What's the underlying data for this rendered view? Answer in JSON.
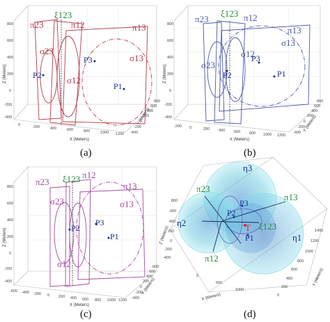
{
  "captions": [
    "(a)",
    "(b)",
    "(c)",
    "(d)"
  ],
  "axis_labels": {
    "x": "X (Meters)",
    "y": "Y (Meters)",
    "z": "Z (Meters)"
  },
  "panel_a": {
    "labels": {
      "pi23": "π23",
      "xi123": "ξ123",
      "pi12": "π12",
      "pi13": "π13",
      "sigma23": "σ23",
      "sigma12": "σ12",
      "sigma13": "σ13",
      "p1": "P1",
      "p2": "P2",
      "p3": "P3"
    },
    "z_ticks": [
      "800",
      "600",
      "400",
      "200",
      "0",
      "-200",
      "-400"
    ],
    "x_ticks": [
      "0",
      "200",
      "400",
      "600",
      "800",
      "1000",
      "1200"
    ],
    "y_ticks": [
      "-400",
      "-200",
      "0",
      "200",
      "400",
      "600",
      "800"
    ],
    "colors": {
      "primary": "#b53a4a",
      "secondary": "#c9707c",
      "axis_line": "#3a3a3a"
    }
  },
  "panel_b": {
    "labels": {
      "pi23": "π23",
      "xi123": "ξ123",
      "pi12": "π12",
      "pi13": "π13",
      "sigma23": "σ23",
      "sigma12": "σ12",
      "sigma13": "σ13",
      "p1": "P1",
      "p2": "P2",
      "p3": "P3"
    },
    "z_ticks": [
      "800",
      "600",
      "400",
      "200",
      "0",
      "-200",
      "-400"
    ],
    "x_ticks": [
      "-200",
      "0",
      "200",
      "400",
      "600",
      "800",
      "1000",
      "1200"
    ],
    "y_ticks": [
      "-400",
      "-200",
      "0",
      "200",
      "400",
      "600",
      "800"
    ],
    "colors": {
      "primary": "#4a57a8",
      "secondary": "#8a93cf",
      "axis_line": "#3a3a3a"
    }
  },
  "panel_c": {
    "labels": {
      "pi23": "π23",
      "xi123": "ξ123",
      "pi12": "π12",
      "pi13": "π13",
      "sigma23": "σ23",
      "sigma12": "σ12",
      "sigma13": "σ13",
      "p1": "P1",
      "p2": "P2",
      "p3": "P3"
    },
    "z_ticks": [
      "800",
      "600",
      "400",
      "200",
      "0",
      "-200",
      "-400"
    ],
    "x_ticks": [
      "-600",
      "-400",
      "-200",
      "0",
      "200",
      "400",
      "600",
      "800",
      "1000",
      "1200"
    ],
    "y_ticks": [
      "-400",
      "-200",
      "0",
      "200",
      "400",
      "600",
      "800"
    ],
    "colors": {
      "primary": "#a44aa0",
      "secondary": "#c98cc6",
      "axis_line": "#3a3a3a"
    }
  },
  "panel_d": {
    "labels": {
      "eta1": "η1",
      "eta2": "η2",
      "eta3": "η3",
      "pi23": "π23",
      "pi13": "π13",
      "pi12": "π12",
      "xi123": "ξ123",
      "t": "T",
      "p1": "P1",
      "p2": "P2",
      "p3": "P3"
    },
    "z_ticks": [
      "800",
      "600",
      "400",
      "200",
      "0",
      "-200",
      "-400"
    ],
    "x_ticks": [
      "0",
      "500",
      "1000"
    ],
    "y_ticks": [
      "0",
      "200",
      "400",
      "600",
      "800",
      "1000",
      "1200",
      "1400"
    ],
    "colors": {
      "sphere_fill": "#6fd6e6",
      "sphere_edge": "#1aa8c4",
      "inner": "#7a74c8",
      "target": "#e0203a",
      "green": "#1f8a3a"
    }
  }
}
